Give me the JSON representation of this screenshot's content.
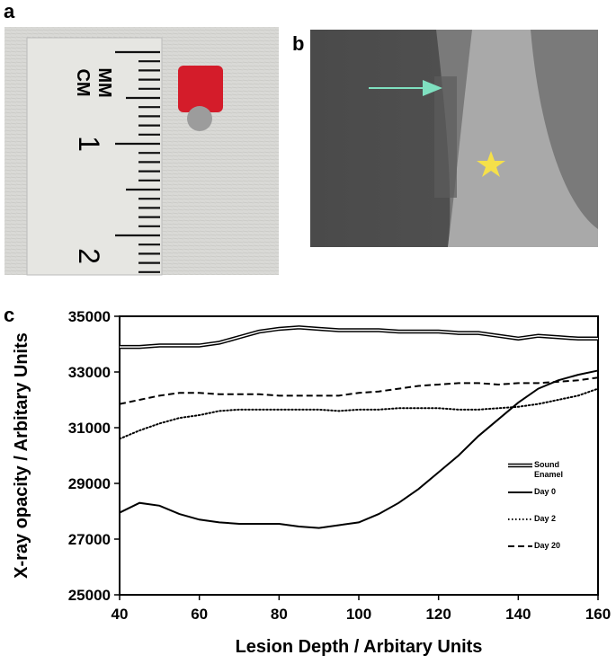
{
  "panels": {
    "a": {
      "label": "a",
      "ruler_texts": [
        "MM",
        "CM",
        "1",
        "2"
      ]
    },
    "b": {
      "label": "b"
    },
    "c": {
      "label": "c"
    }
  },
  "chart_data": {
    "type": "line",
    "xlabel": "Lesion Depth / Arbitary Units",
    "ylabel": "X-ray opacity / Arbitary Units",
    "x": [
      40,
      45,
      50,
      55,
      60,
      65,
      70,
      75,
      80,
      85,
      90,
      95,
      100,
      105,
      110,
      115,
      120,
      125,
      130,
      135,
      140,
      145,
      150,
      155,
      160
    ],
    "series": [
      {
        "name": "Sound Enamel",
        "color": "#000000",
        "style": "double",
        "values": [
          33900,
          33900,
          33950,
          33950,
          33950,
          34050,
          34250,
          34450,
          34550,
          34600,
          34550,
          34500,
          34500,
          34500,
          34450,
          34450,
          34450,
          34400,
          34400,
          34300,
          34200,
          34300,
          34250,
          34200,
          34200
        ]
      },
      {
        "name": "Day 0",
        "color": "#000000",
        "style": "solid",
        "values": [
          27950,
          28300,
          28200,
          27900,
          27700,
          27600,
          27550,
          27550,
          27550,
          27450,
          27400,
          27500,
          27600,
          27900,
          28300,
          28800,
          29400,
          30000,
          30700,
          31300,
          31900,
          32400,
          32700,
          32900,
          33050
        ]
      },
      {
        "name": "Day 2",
        "color": "#000000",
        "style": "dotted",
        "values": [
          30600,
          30900,
          31150,
          31350,
          31450,
          31600,
          31650,
          31650,
          31650,
          31650,
          31650,
          31600,
          31650,
          31650,
          31700,
          31700,
          31700,
          31650,
          31650,
          31700,
          31750,
          31850,
          32000,
          32150,
          32400
        ]
      },
      {
        "name": "Day 20",
        "color": "#000000",
        "style": "dashed",
        "values": [
          31850,
          32000,
          32150,
          32250,
          32250,
          32200,
          32200,
          32200,
          32150,
          32150,
          32150,
          32150,
          32250,
          32300,
          32400,
          32500,
          32550,
          32600,
          32600,
          32550,
          32600,
          32600,
          32650,
          32700,
          32800
        ]
      }
    ],
    "xlim": [
      40,
      160
    ],
    "xticks": [
      40,
      60,
      80,
      100,
      120,
      140,
      160
    ],
    "ylim": [
      25000,
      35000
    ],
    "yticks": [
      25000,
      27000,
      29000,
      31000,
      33000,
      35000
    ]
  }
}
